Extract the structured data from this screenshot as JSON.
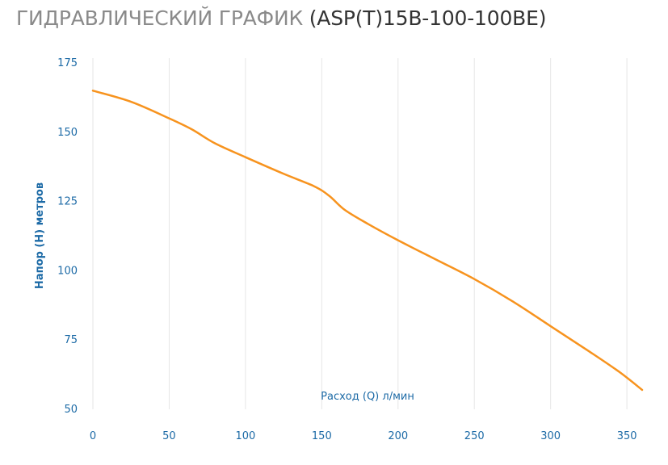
{
  "title": {
    "main": "ГИДРАВЛИЧЕСКИЙ ГРАФИК",
    "model": "(ASP(T)15B-100-100BE)"
  },
  "colors": {
    "curve": "#f7931e",
    "axis_text": "#1c6aa6",
    "grid": "#e6e6e6",
    "title_main": "#8a8a8a",
    "title_model": "#333333"
  },
  "chart_data": {
    "type": "line",
    "title": "ГИДРАВЛИЧЕСКИЙ ГРАФИК (ASP(T)15B-100-100BE)",
    "xlabel": "Расход (Q) л/мин",
    "ylabel": "Напор (H) метров",
    "xlim": [
      0,
      360
    ],
    "ylim": [
      50,
      175
    ],
    "x_ticks": [
      "0",
      "50",
      "100",
      "150",
      "200",
      "250",
      "300",
      "350"
    ],
    "y_ticks": [
      "50",
      "75",
      "100",
      "125",
      "150",
      "175"
    ],
    "grid": "vertical",
    "series": [
      {
        "x": [
          0,
          25,
          50,
          65,
          80,
          100,
          125,
          145,
          155,
          165,
          180,
          200,
          225,
          250,
          275,
          300,
          325,
          345,
          360
        ],
        "y": [
          165,
          161,
          155,
          151,
          146,
          141,
          135,
          130.5,
          127,
          122,
          117,
          111,
          104,
          97,
          89,
          80,
          71,
          63.5,
          57
        ]
      }
    ]
  }
}
